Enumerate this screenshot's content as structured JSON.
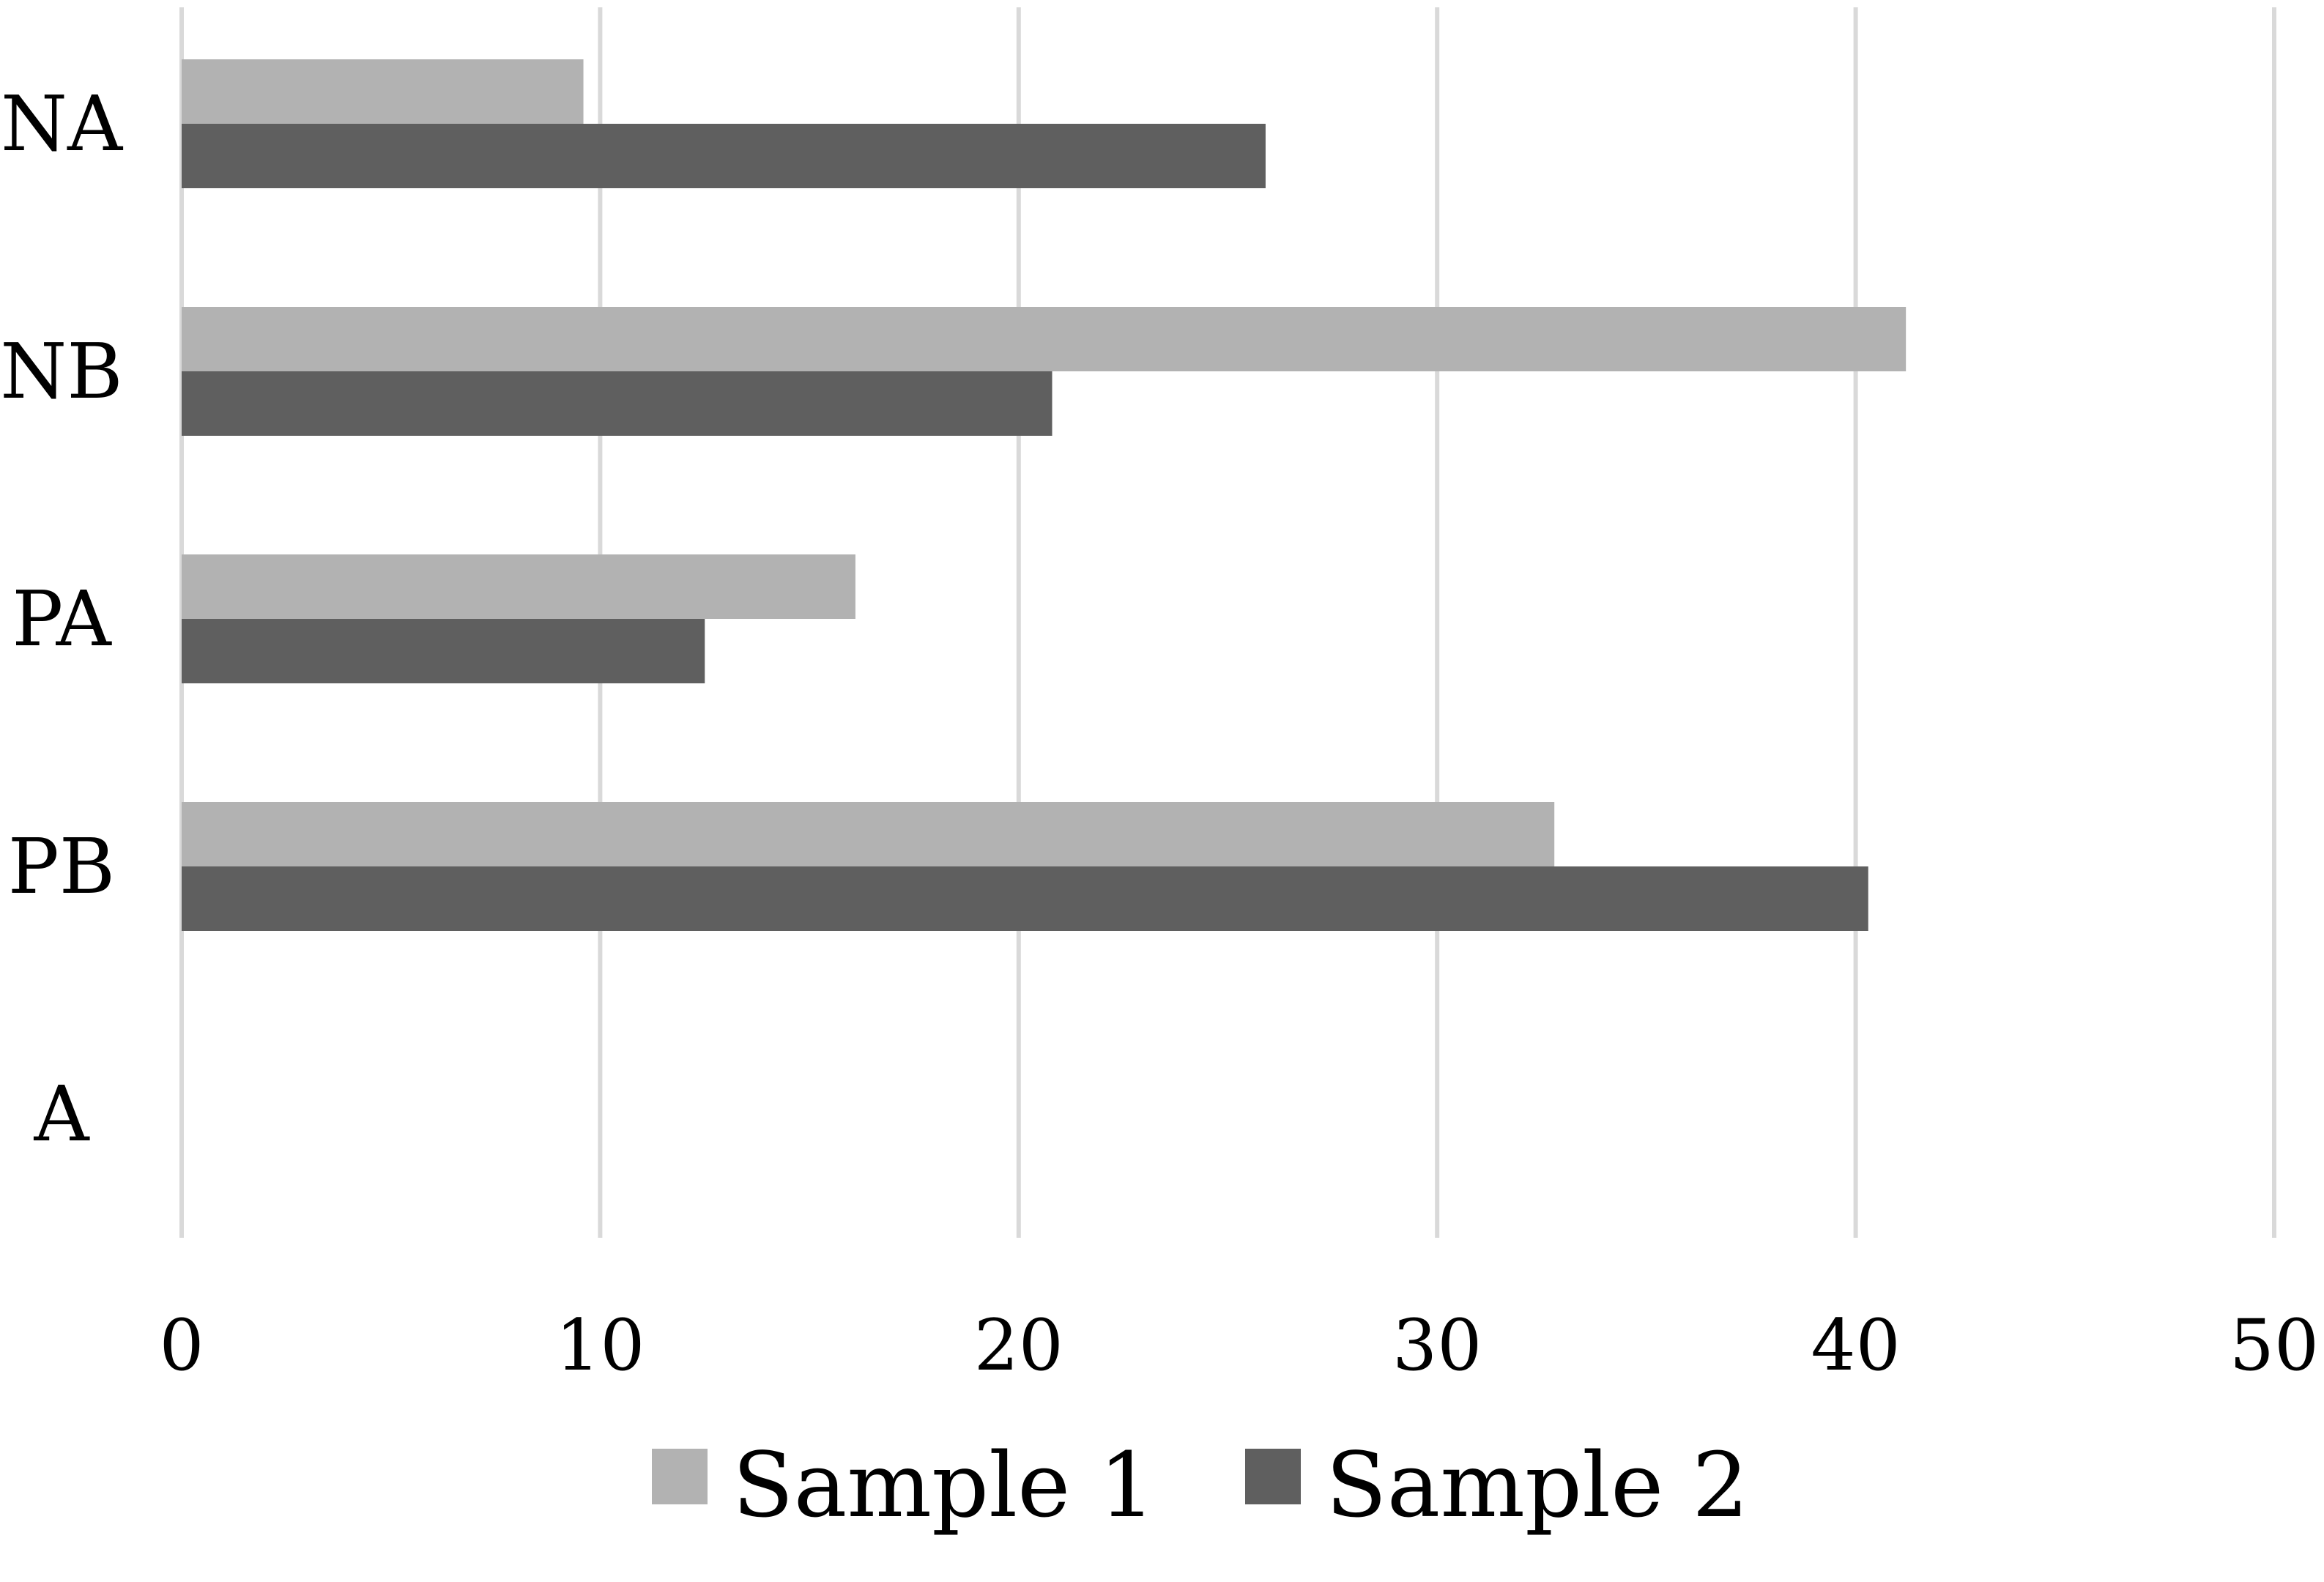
{
  "chart_data": {
    "type": "bar",
    "orientation": "horizontal",
    "categories": [
      "NA",
      "NB",
      "PA",
      "PB",
      "A"
    ],
    "series": [
      {
        "name": "Sample 1",
        "color": "#b2b2b2",
        "values": [
          9.6,
          41.2,
          16.1,
          32.8,
          0
        ]
      },
      {
        "name": "Sample 2",
        "color": "#5f5f5f",
        "values": [
          25.9,
          20.8,
          12.5,
          40.3,
          0
        ]
      }
    ],
    "xlim": [
      0,
      50
    ],
    "x_ticks": [
      "0",
      "10",
      "20",
      "30",
      "40",
      "50"
    ],
    "grid": true,
    "grid_color": "#d9d9d9",
    "legend_position": "bottom"
  }
}
